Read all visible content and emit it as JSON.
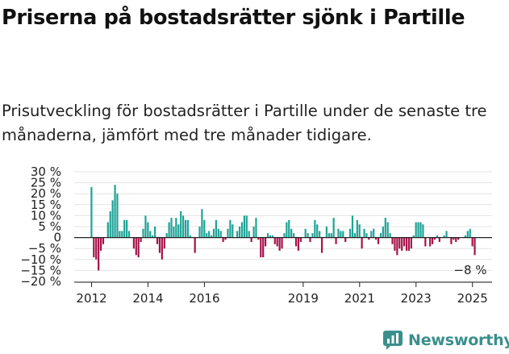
{
  "title": "Priserna på bostadsrätter sjönk i Partille",
  "subtitle": "Prisutveckling för bostadsrätter i Partille under de senaste tre månaderna, jämfört med tre månader tidigare.",
  "brand": {
    "name": "Newsworthy"
  },
  "colors": {
    "positive": "#1fa396",
    "negative": "#a6134a",
    "grid": "#e3e3e3",
    "axis": "#222222",
    "brand": "#3a8f8c"
  },
  "chart_data": {
    "type": "bar",
    "title": "Priserna på bostadsrätter sjönk i Partille",
    "xlabel": "",
    "ylabel": "",
    "ylim": [
      -20,
      30
    ],
    "y_ticks": [
      "30 %",
      "25 %",
      "20 %",
      "15 %",
      "10 %",
      "5 %",
      "0",
      "−5 %",
      "−10 %",
      "−15 %",
      "−20 %"
    ],
    "y_tick_values": [
      30,
      25,
      20,
      15,
      10,
      5,
      0,
      -5,
      -10,
      -15,
      -20
    ],
    "x_ticks": [
      "2012",
      "2014",
      "2016",
      "2019",
      "2021",
      "2023",
      "2025"
    ],
    "x_tick_positions": [
      "2012-01",
      "2014-01",
      "2016-01",
      "2019-07",
      "2021-07",
      "2023-07",
      "2025-07"
    ],
    "start": "2012-01",
    "frequency": "monthly",
    "last_value_label": "−8 %",
    "grid": true,
    "legend": "none",
    "values": [
      23,
      -9,
      -10,
      -15,
      -6,
      -3,
      0,
      7,
      12,
      17,
      24,
      20,
      3,
      3,
      8,
      8,
      3,
      0,
      -5,
      -8,
      -9,
      -2,
      4,
      10,
      7,
      3,
      1,
      5,
      -3,
      -7,
      -10,
      -5,
      2,
      7,
      9,
      5,
      9,
      6,
      12,
      10,
      8,
      8,
      1,
      0,
      -7,
      0,
      5,
      13,
      8,
      2,
      3,
      1,
      4,
      8,
      4,
      3,
      -2,
      -1,
      4,
      8,
      6,
      0,
      3,
      5,
      7,
      10,
      10,
      3,
      -2,
      5,
      9,
      -1,
      -9,
      -9,
      -4,
      2,
      1,
      1,
      -3,
      -4,
      -6,
      -5,
      2,
      7,
      8,
      4,
      2,
      -4,
      -6,
      -2,
      0,
      4,
      2,
      -2,
      2,
      8,
      6,
      3,
      -7,
      0,
      5,
      2,
      2,
      9,
      -3,
      4,
      3,
      3,
      -2,
      0,
      4,
      10,
      2,
      8,
      6,
      -5,
      4,
      2,
      -1,
      3,
      4,
      -1,
      -3,
      2,
      5,
      9,
      7,
      2,
      -3,
      -6,
      -8,
      -5,
      -6,
      -4,
      -6,
      -6,
      -5,
      1,
      7,
      7,
      7,
      6,
      -4,
      0,
      -4,
      -3,
      -1,
      1,
      -2,
      0,
      1,
      3,
      0,
      -3,
      -1,
      -2,
      -1,
      0,
      0,
      1,
      3,
      4,
      -4,
      -8
    ]
  }
}
